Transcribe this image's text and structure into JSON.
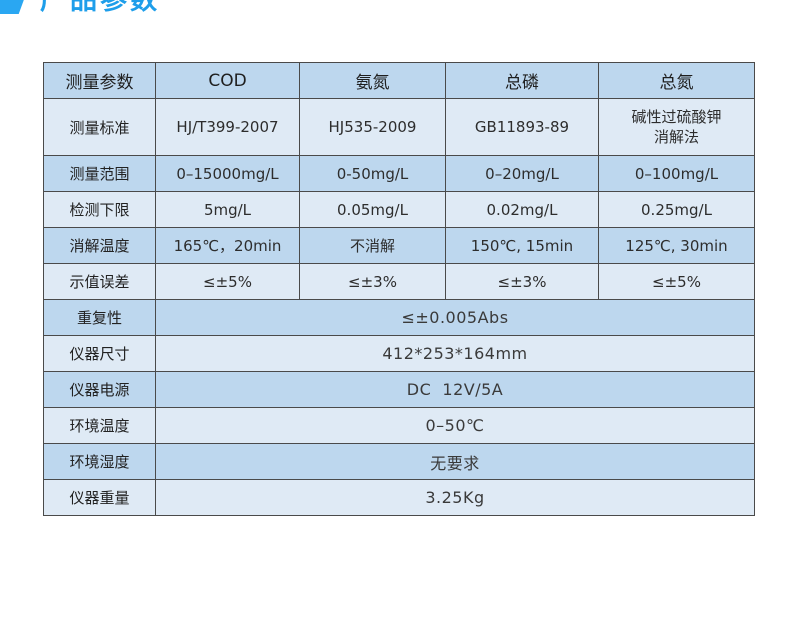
{
  "header": {
    "title": "产品参数",
    "accent_color": "#2aa7f2",
    "title_color": "#1e9eea"
  },
  "colors": {
    "row_dark": "#bdd7ee",
    "row_light": "#dfeaf5",
    "border": "#4a4a4a"
  },
  "table": {
    "headers": [
      "测量参数",
      "COD",
      "氨氮",
      "总磷",
      "总氮"
    ],
    "rows": [
      {
        "label": "测量标准",
        "values": [
          "HJ/T399-2007",
          "HJ535-2009",
          "GB11893-89",
          [
            "碱性过硫酸钾",
            "消解法"
          ]
        ]
      },
      {
        "label": "测量范围",
        "values": [
          "0–15000mg/L",
          "0-50mg/L",
          "0–20mg/L",
          "0–100mg/L"
        ]
      },
      {
        "label": "检测下限",
        "values": [
          "5mg/L",
          "0.05mg/L",
          "0.02mg/L",
          "0.25mg/L"
        ]
      },
      {
        "label": "消解温度",
        "values": [
          "165℃，20min",
          "不消解",
          "150℃, 15min",
          "125℃, 30min"
        ]
      },
      {
        "label": "示值误差",
        "values": [
          "≤±5%",
          "≤±3%",
          "≤±3%",
          "≤±5%"
        ]
      }
    ],
    "wide_rows": [
      {
        "label": "重复性",
        "value": "≤±0.005Abs"
      },
      {
        "label": "仪器尺寸",
        "value": "412*253*164mm"
      },
      {
        "label": "仪器电源",
        "value": "DC  12V/5A"
      },
      {
        "label": "环境温度",
        "value": "0–50℃"
      },
      {
        "label": "环境湿度",
        "value": "无要求"
      },
      {
        "label": "仪器重量",
        "value": "3.25Kg"
      }
    ]
  }
}
